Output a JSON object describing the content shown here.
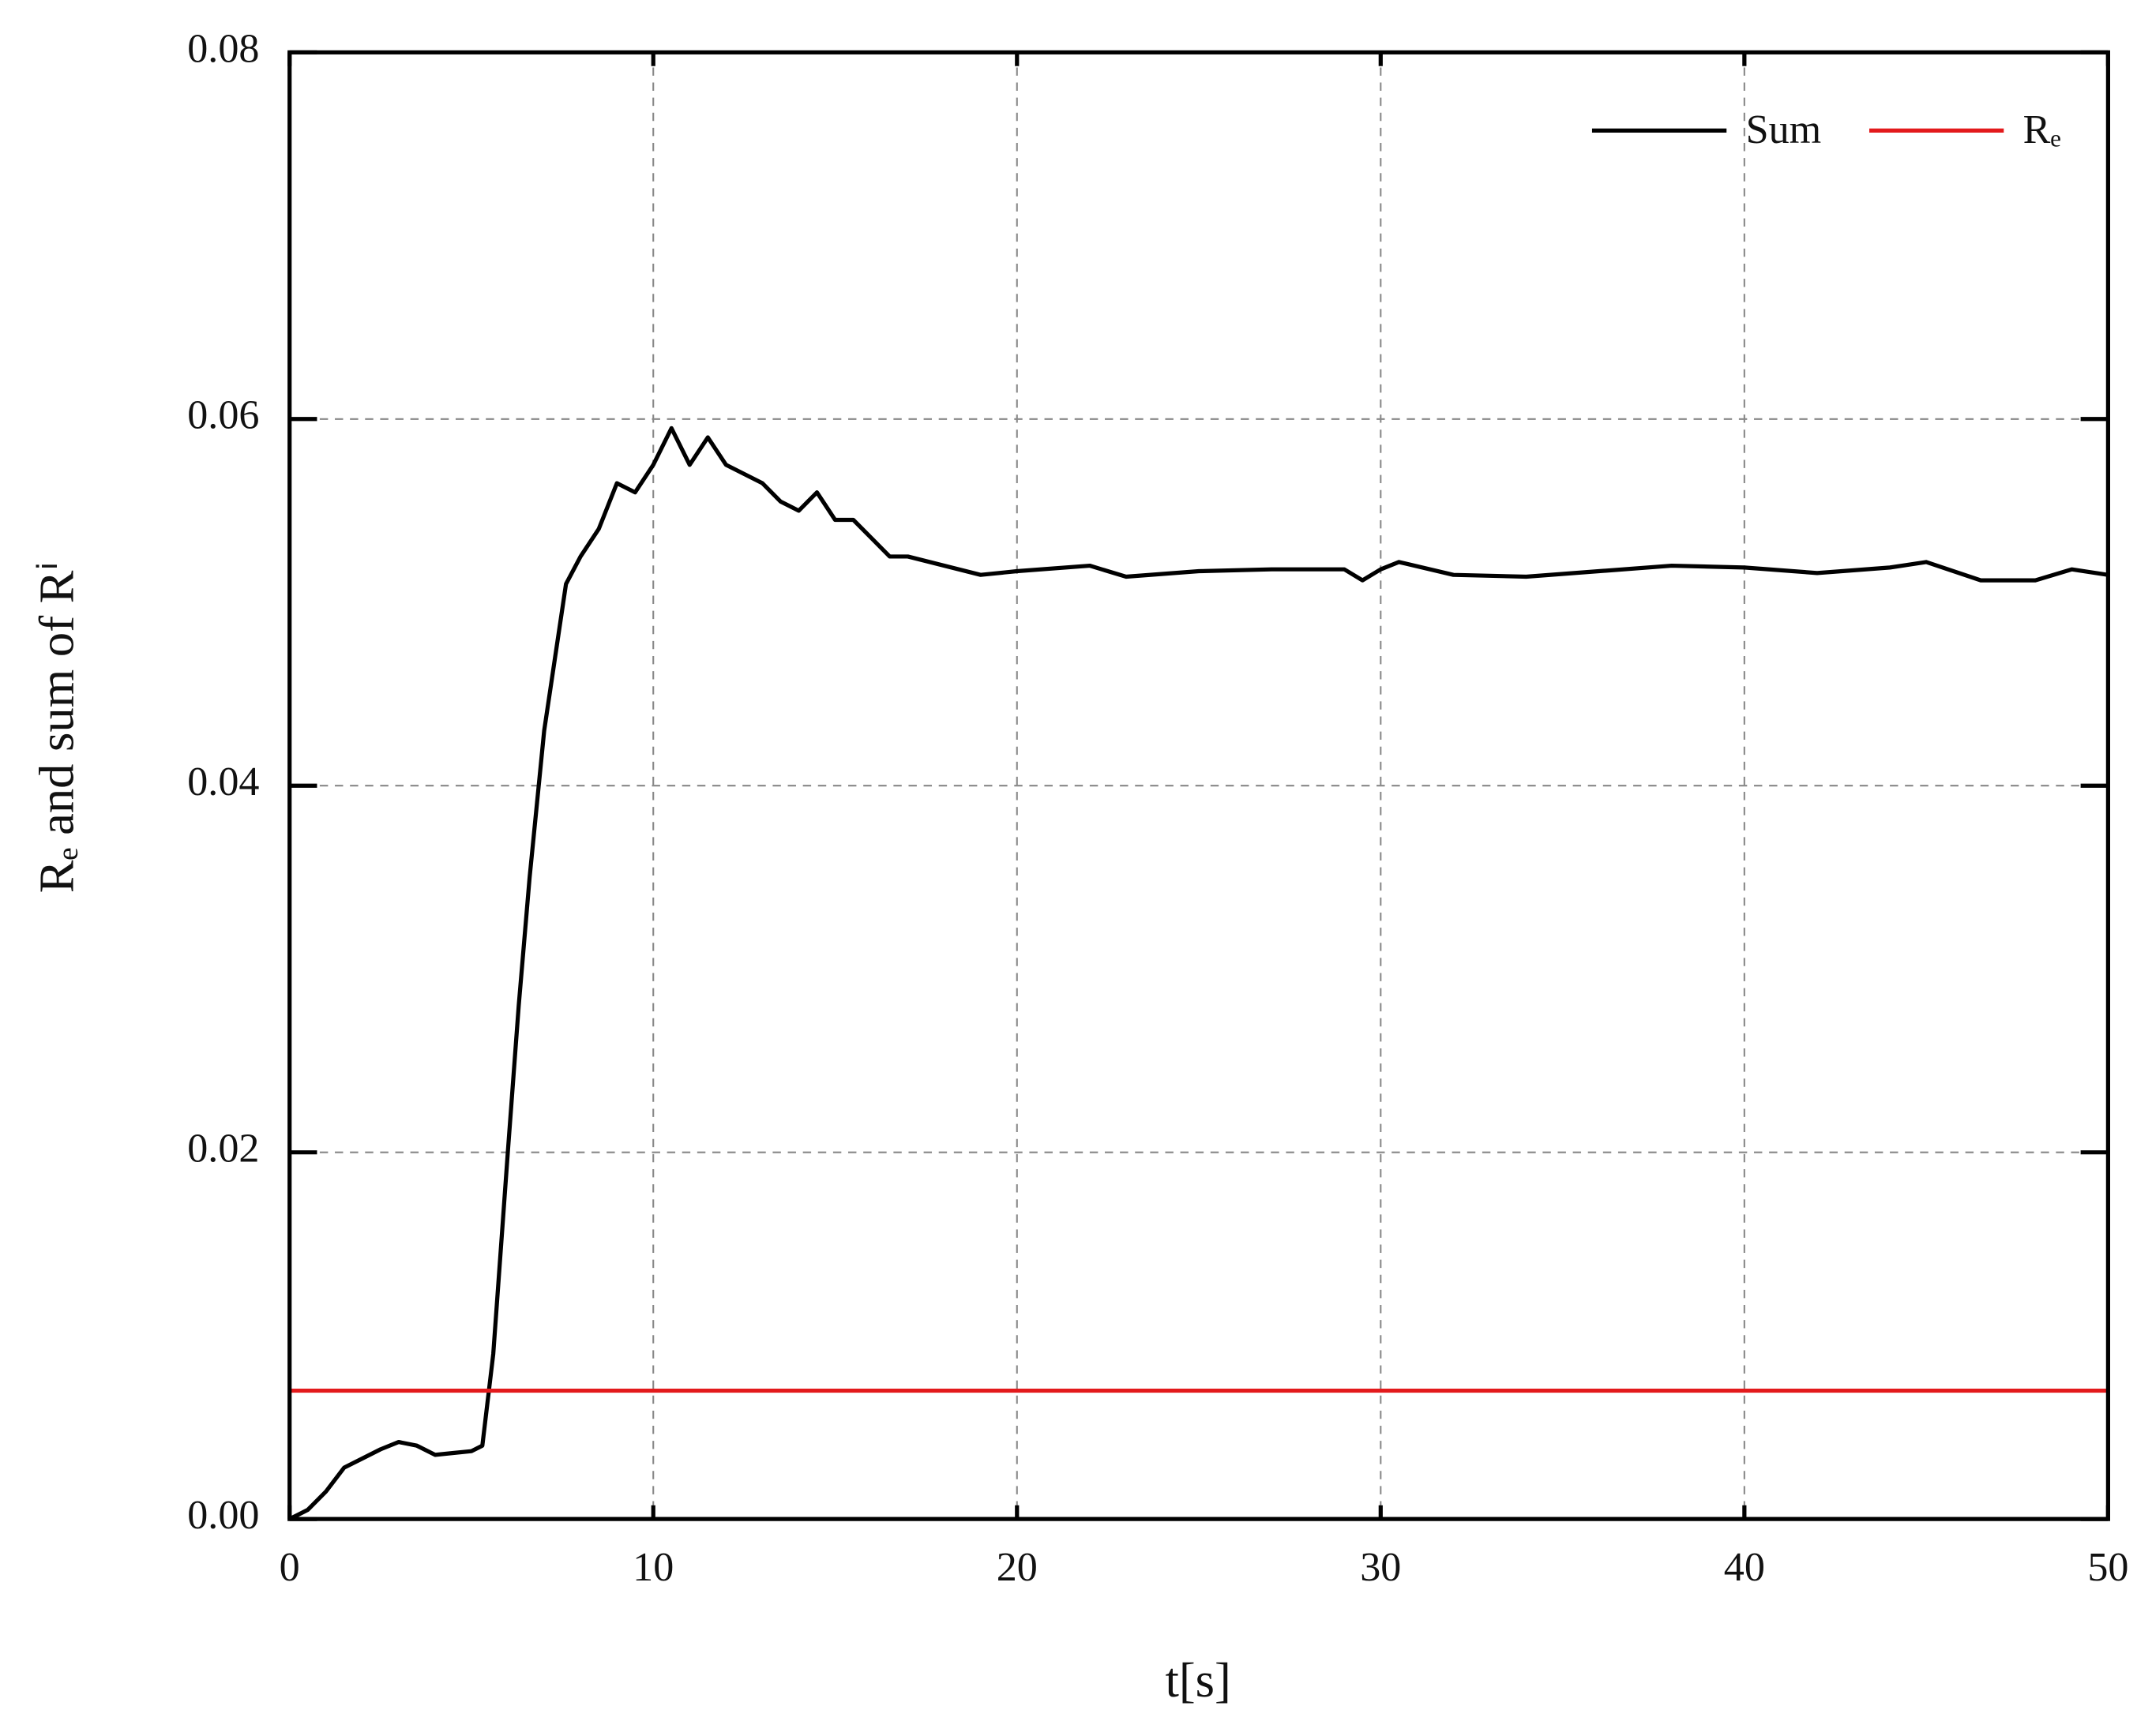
{
  "chart_data": {
    "type": "line",
    "xlabel": "t[s]",
    "ylabel": "Rₑ and sum of Rⁱ",
    "xlim": [
      0,
      50
    ],
    "xticks": [
      0,
      10,
      20,
      30,
      40,
      50
    ],
    "ylim": [
      0,
      0.08
    ],
    "yticks": [
      {
        "value": 0,
        "label": "0.00"
      },
      {
        "value": 0.02,
        "label": "0.02"
      },
      {
        "value": 0.04,
        "label": "0.04"
      },
      {
        "value": 0.06,
        "label": "0.06"
      },
      {
        "value": 0.08,
        "label": "0.08"
      }
    ],
    "grid": true,
    "legend": "upper right",
    "series": [
      {
        "name": "Sum",
        "color": "#000000",
        "x": [
          0,
          0.5,
          1,
          1.5,
          2,
          2.5,
          3,
          3.5,
          4,
          4.5,
          5,
          5.3,
          5.6,
          6,
          6.3,
          6.6,
          7,
          7.3,
          7.6,
          8,
          8.5,
          9,
          9.5,
          10,
          10.5,
          11,
          11.5,
          12,
          12.5,
          13,
          13.5,
          14,
          14.5,
          15,
          15.5,
          16,
          16.5,
          17,
          18,
          19,
          20,
          22,
          23,
          25,
          27,
          29,
          29.5,
          30,
          30.5,
          32,
          34,
          36,
          38,
          40,
          42,
          44,
          45,
          46.5,
          48,
          49,
          50
        ],
        "values": [
          0,
          0.0005,
          0.0015,
          0.0028,
          0.0033,
          0.0038,
          0.0042,
          0.004,
          0.0035,
          0.0036,
          0.0037,
          0.004,
          0.009,
          0.02,
          0.028,
          0.035,
          0.043,
          0.047,
          0.051,
          0.0525,
          0.054,
          0.0565,
          0.056,
          0.0575,
          0.0595,
          0.0575,
          0.059,
          0.0575,
          0.057,
          0.0565,
          0.0555,
          0.055,
          0.056,
          0.0545,
          0.0545,
          0.0535,
          0.0525,
          0.0525,
          0.052,
          0.0515,
          0.0517,
          0.052,
          0.0514,
          0.0517,
          0.0518,
          0.0518,
          0.0512,
          0.0518,
          0.0522,
          0.0515,
          0.0514,
          0.0517,
          0.052,
          0.0519,
          0.0516,
          0.0519,
          0.0522,
          0.0512,
          0.0512,
          0.0518,
          0.0515
        ]
      },
      {
        "name": "Rₑ",
        "color": "#e31a1c",
        "x": [
          0,
          50
        ],
        "values": [
          0.007,
          0.007
        ]
      }
    ]
  }
}
